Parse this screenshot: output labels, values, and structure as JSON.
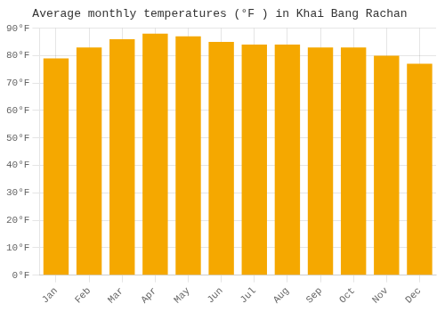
{
  "chart_data": {
    "type": "bar",
    "title": "Average monthly temperatures (°F ) in Khai Bang Rachan",
    "categories": [
      "Jan",
      "Feb",
      "Mar",
      "Apr",
      "May",
      "Jun",
      "Jul",
      "Aug",
      "Sep",
      "Oct",
      "Nov",
      "Dec"
    ],
    "values": [
      79,
      83,
      86,
      88,
      87,
      85,
      84,
      84,
      83,
      83,
      80,
      77
    ],
    "color": "#F5A800",
    "ylim": [
      0,
      90
    ],
    "yticks": [
      {
        "value": 0,
        "label": "0°F"
      },
      {
        "value": 10,
        "label": "10°F"
      },
      {
        "value": 20,
        "label": "20°F"
      },
      {
        "value": 30,
        "label": "30°F"
      },
      {
        "value": 40,
        "label": "40°F"
      },
      {
        "value": 50,
        "label": "50°F"
      },
      {
        "value": 60,
        "label": "60°F"
      },
      {
        "value": 70,
        "label": "70°F"
      },
      {
        "value": 80,
        "label": "80°F"
      },
      {
        "value": 90,
        "label": "90°F"
      }
    ],
    "grid": true
  }
}
